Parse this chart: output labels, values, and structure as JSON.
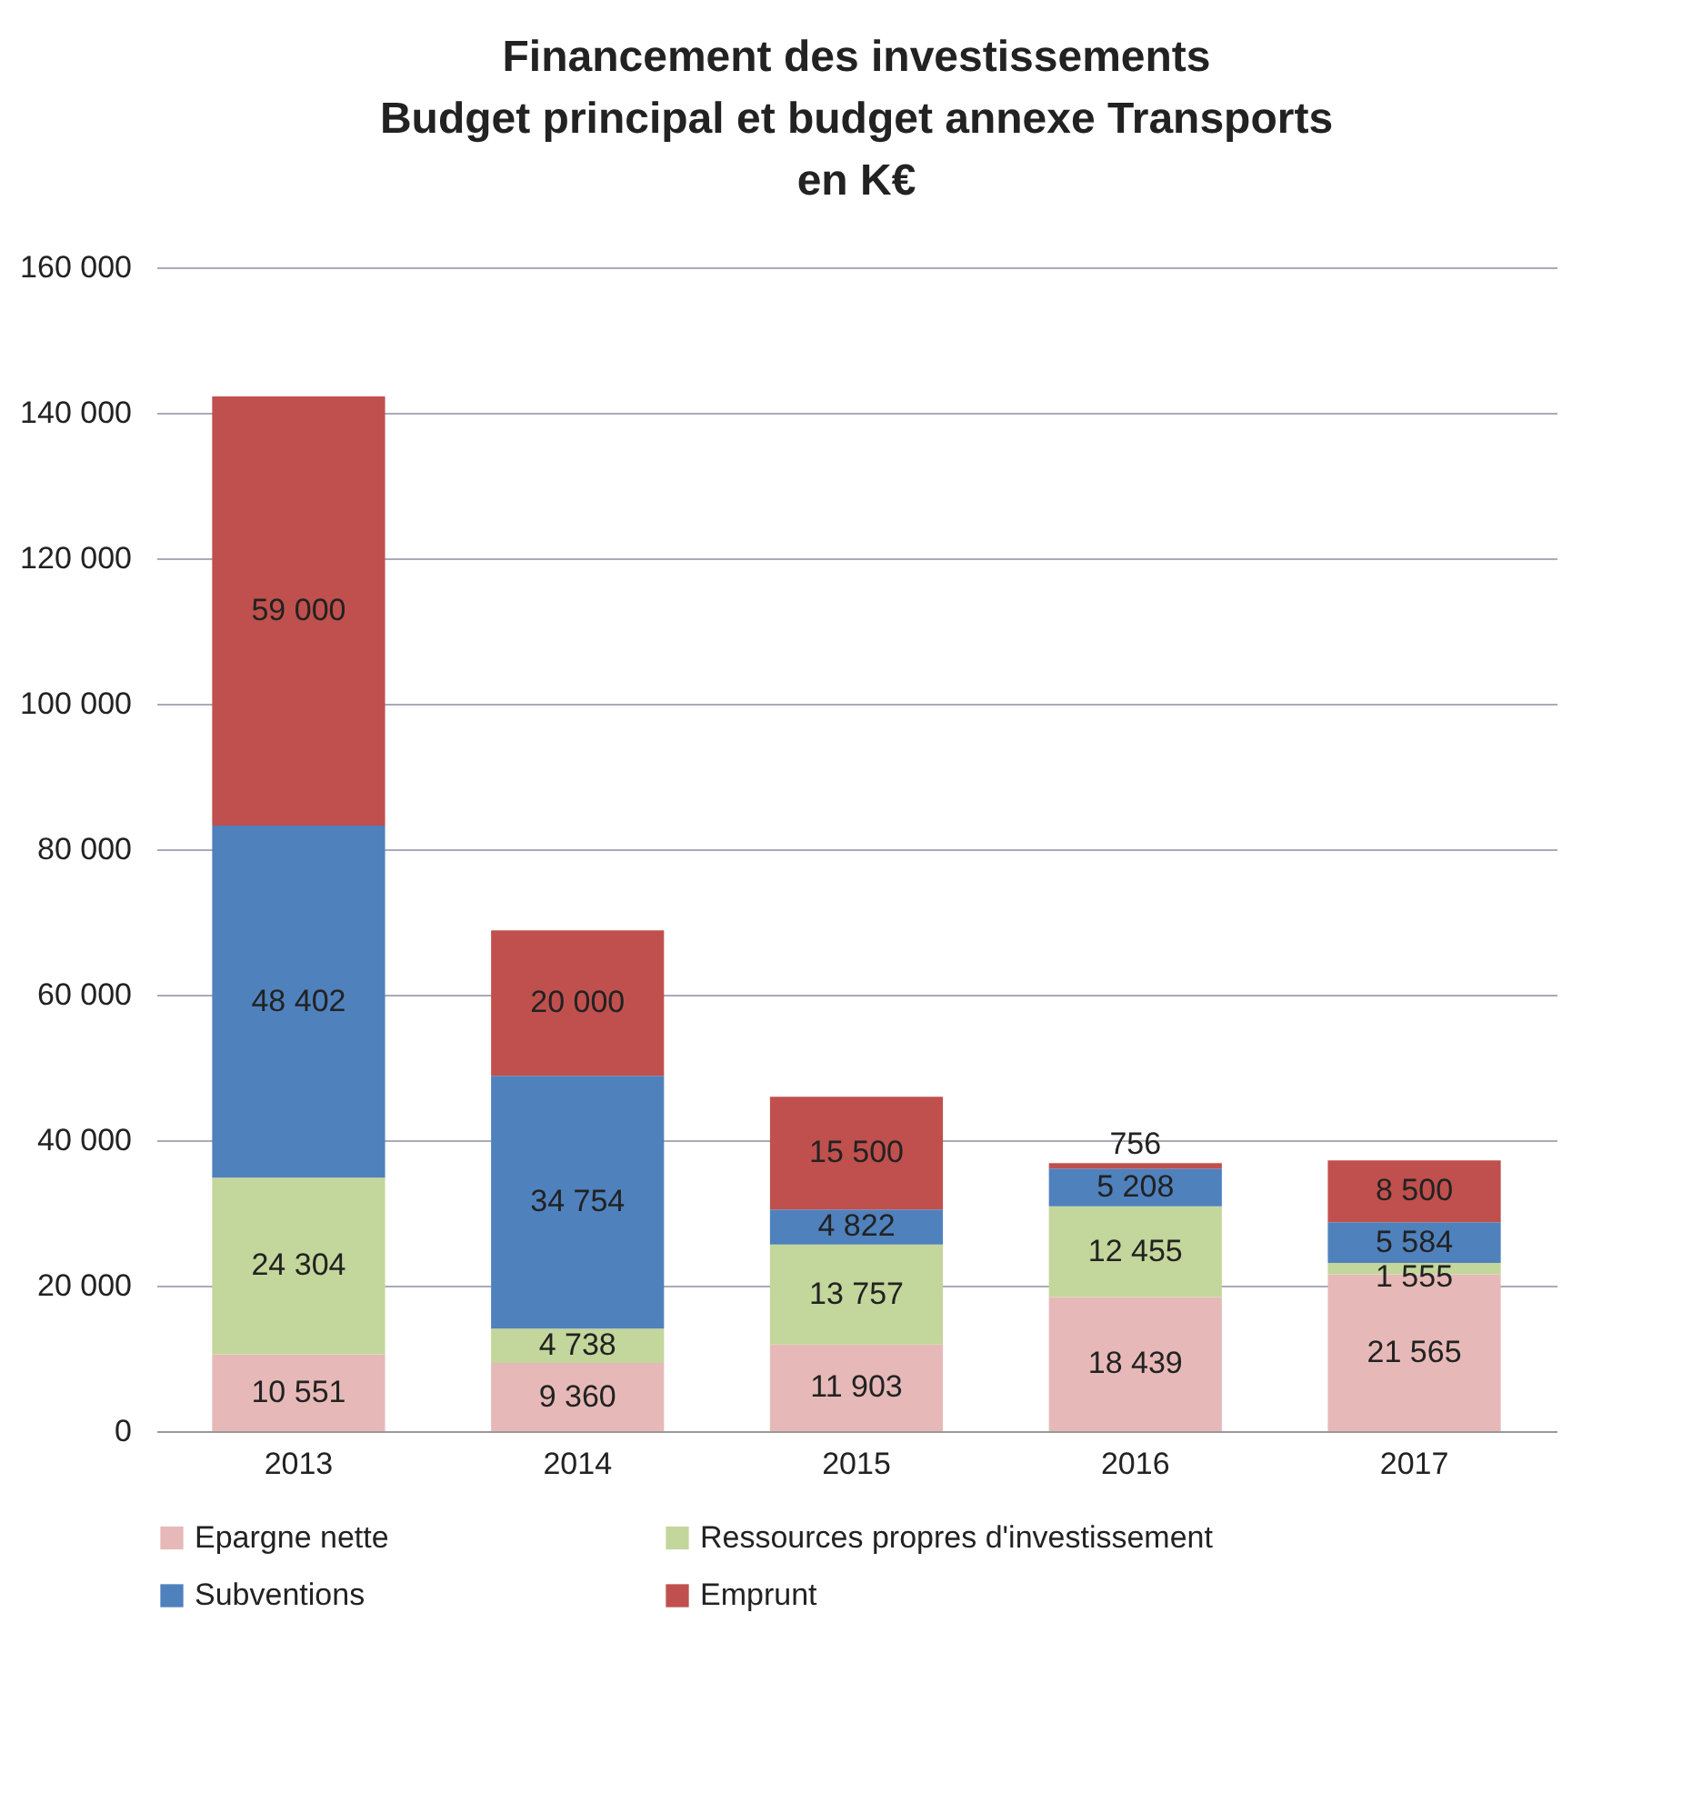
{
  "chart_data": {
    "type": "bar",
    "stacked": true,
    "title": "Financement des investissements\nBudget principal et budget annexe Transports\nen K€",
    "categories": [
      "2013",
      "2014",
      "2015",
      "2016",
      "2017"
    ],
    "series": [
      {
        "name": "Epargne nette",
        "color": "#e6b9b8",
        "values": [
          10551,
          9360,
          11903,
          18439,
          21565
        ],
        "value_labels": [
          "10 551",
          "9 360",
          "11 903",
          "18 439",
          "21 565"
        ]
      },
      {
        "name": "Ressources propres d'investissement",
        "color": "#c3d69b",
        "values": [
          24304,
          4738,
          13757,
          12455,
          1555
        ],
        "value_labels": [
          "24 304",
          "4 738",
          "13 757",
          "12 455",
          "1 555"
        ]
      },
      {
        "name": "Subventions",
        "color": "#4f81bd",
        "values": [
          48402,
          34754,
          4822,
          5208,
          5584
        ],
        "value_labels": [
          "48 402",
          "34 754",
          "4 822",
          "5 208",
          "5 584"
        ]
      },
      {
        "name": "Emprunt",
        "color": "#c0504d",
        "values": [
          59000,
          20000,
          15500,
          756,
          8500
        ],
        "value_labels": [
          "59 000",
          "20 000",
          "15 500",
          "756",
          "8 500"
        ]
      }
    ],
    "ylim": [
      0,
      160000
    ],
    "yticks": [
      {
        "value": 0,
        "label": "0"
      },
      {
        "value": 20000,
        "label": "20 000"
      },
      {
        "value": 40000,
        "label": "40 000"
      },
      {
        "value": 60000,
        "label": "60 000"
      },
      {
        "value": 80000,
        "label": "80 000"
      },
      {
        "value": 100000,
        "label": "100 000"
      },
      {
        "value": 120000,
        "label": "120 000"
      },
      {
        "value": 140000,
        "label": "140 000"
      },
      {
        "value": 160000,
        "label": "160 000"
      }
    ],
    "grid": "y",
    "legend": "bottom"
  }
}
